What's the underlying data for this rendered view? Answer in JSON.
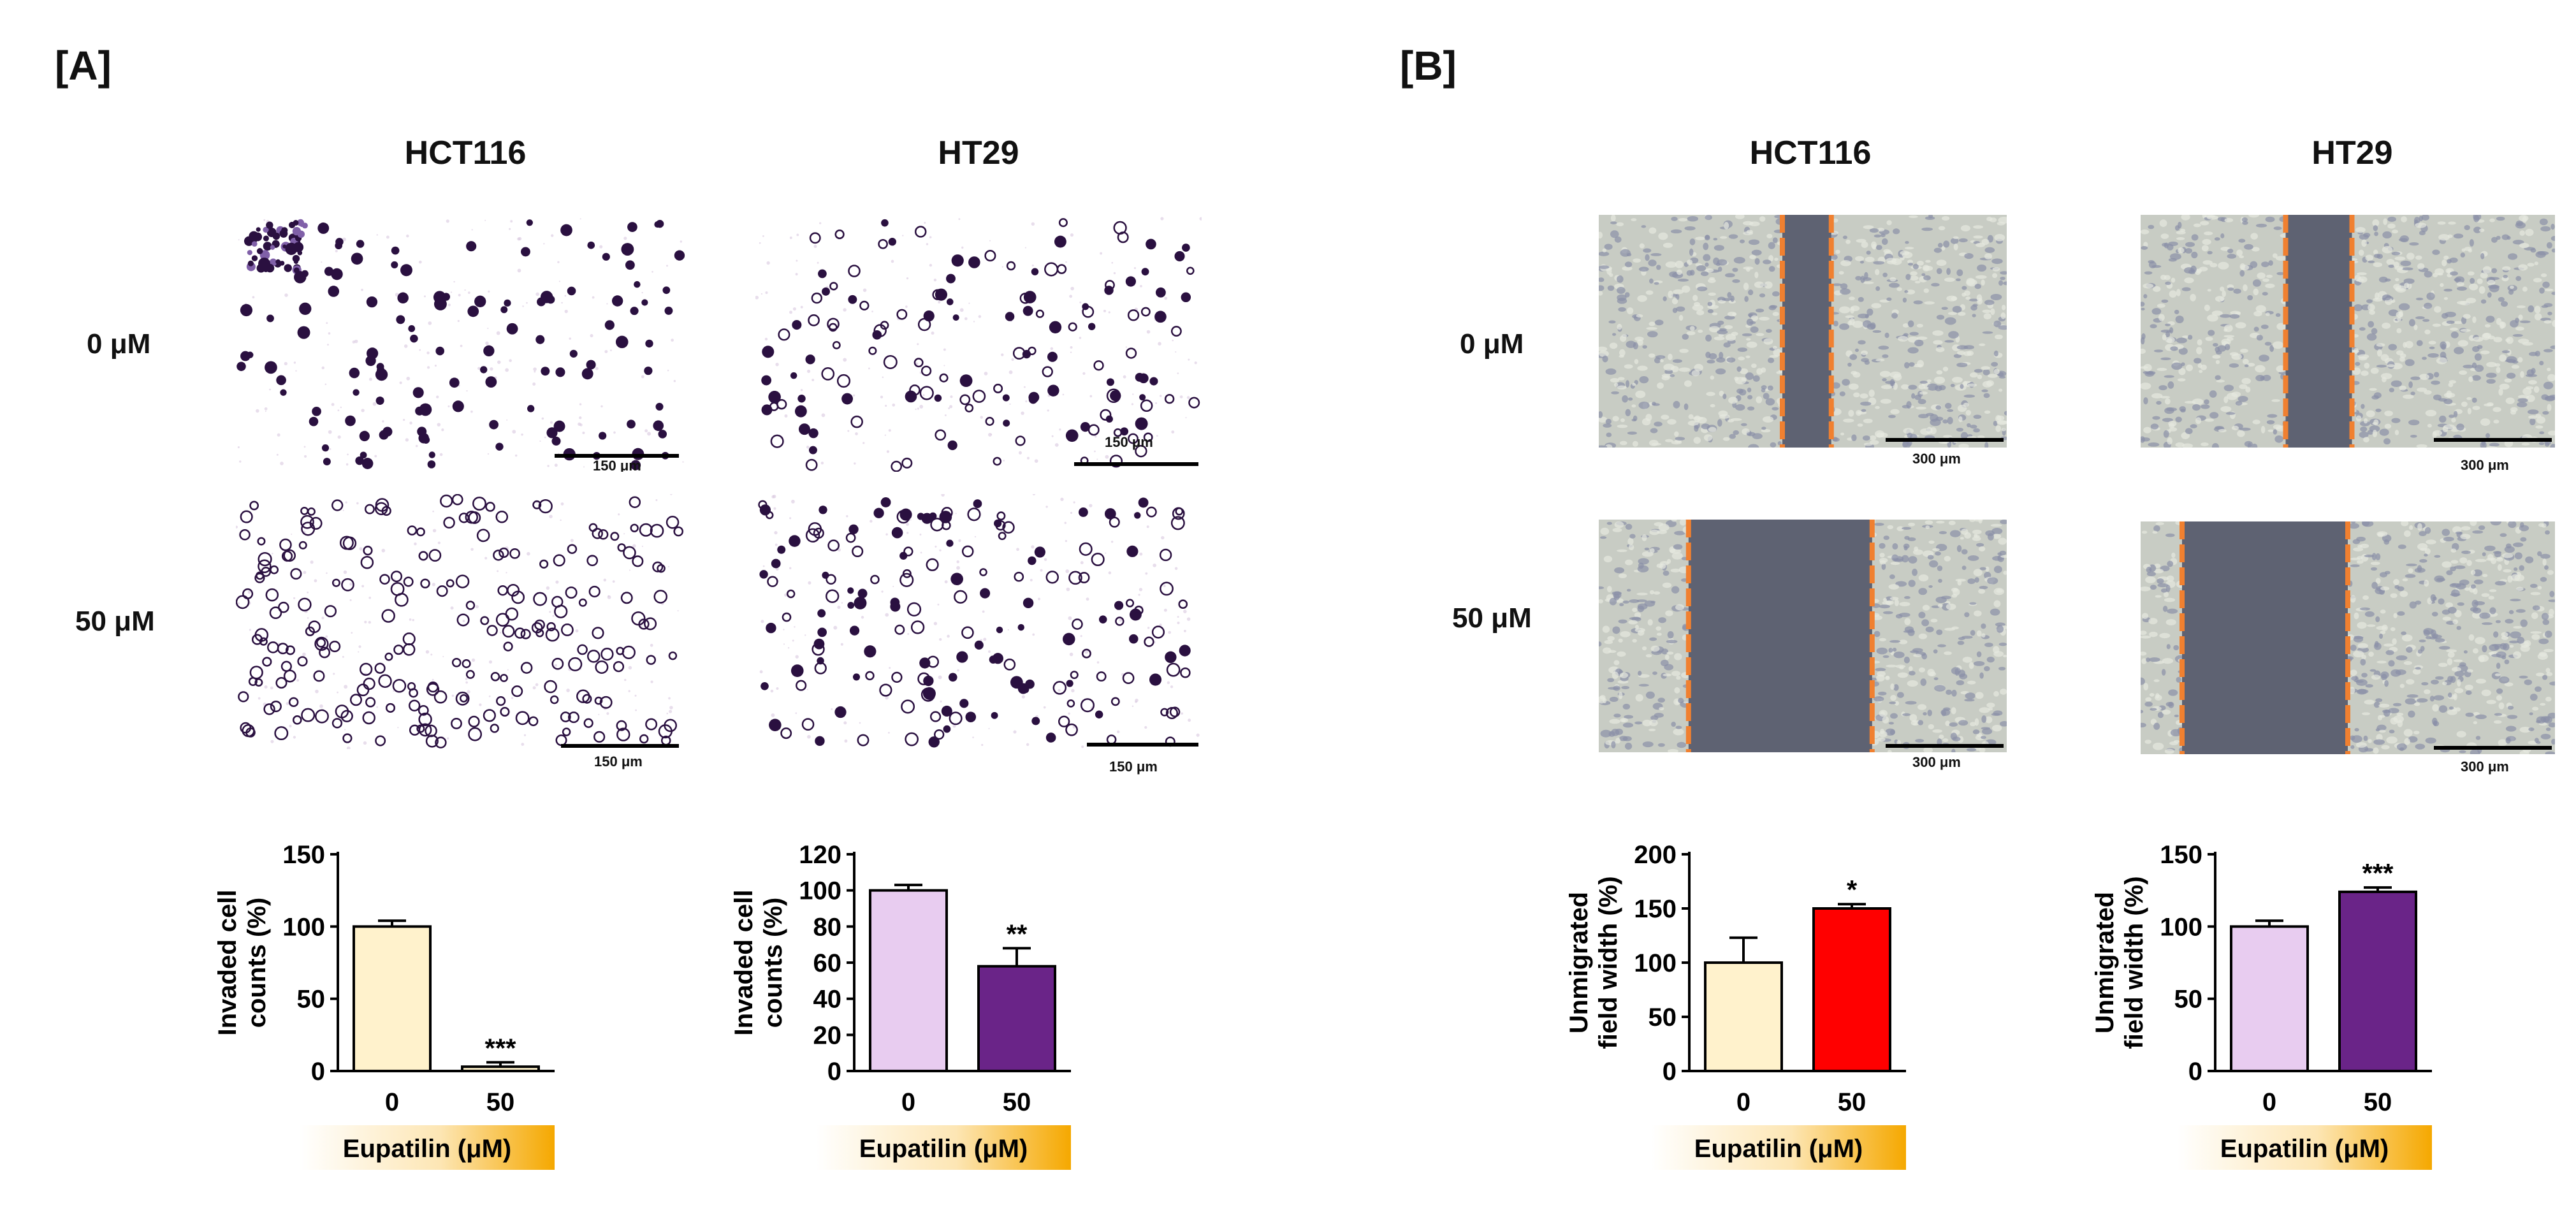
{
  "panels": {
    "A": {
      "label": "[A]",
      "columns": [
        "HCT116",
        "HT29"
      ],
      "rows": [
        "0 μM",
        "50 μM"
      ],
      "scale_label": "150 μm"
    },
    "B": {
      "label": "[B]",
      "columns": [
        "HCT116",
        "HT29"
      ],
      "rows": [
        "0 μM",
        "50 μM"
      ],
      "scale_label": "300 μm"
    }
  },
  "colors": {
    "hct116_control": "#fff2cc",
    "hct116_50_A": "#fff2cc",
    "ht29_control": "#e8ccf0",
    "ht29_50": "#6a2488",
    "hct116_50_B": "#ff0000",
    "xlabel_gradient_start": "#ffffff",
    "xlabel_gradient_end": "#f5a800",
    "wound_gap": "#5e6272",
    "wound_edge": "#f08030",
    "cell_stain": "#2a1040",
    "monolayer": "#c8ccc4"
  },
  "chart_data": [
    {
      "type": "bar",
      "panel": "A",
      "cell_line": "HCT116",
      "categories": [
        "0",
        "50"
      ],
      "values": [
        100,
        3
      ],
      "errors": [
        4,
        3
      ],
      "annotations": [
        "",
        "***"
      ],
      "ylabel": "Invaded cell counts (%)",
      "xlabel": "Eupatilin (μM)",
      "ylim": [
        0,
        150
      ],
      "yticks": [
        "0",
        "50",
        "100",
        "150"
      ]
    },
    {
      "type": "bar",
      "panel": "A",
      "cell_line": "HT29",
      "categories": [
        "0",
        "50"
      ],
      "values": [
        100,
        58
      ],
      "errors": [
        3,
        10
      ],
      "annotations": [
        "",
        "**"
      ],
      "ylabel": "Invaded cell counts (%)",
      "xlabel": "Eupatilin (μM)",
      "ylim": [
        0,
        120
      ],
      "yticks": [
        "0",
        "20",
        "40",
        "60",
        "80",
        "100",
        "120"
      ]
    },
    {
      "type": "bar",
      "panel": "B",
      "cell_line": "HCT116",
      "categories": [
        "0",
        "50"
      ],
      "values": [
        100,
        150
      ],
      "errors": [
        23,
        4
      ],
      "annotations": [
        "",
        "*"
      ],
      "ylabel": "Unmigrated field width (%)",
      "xlabel": "Eupatilin (μM)",
      "ylim": [
        0,
        200
      ],
      "yticks": [
        "0",
        "50",
        "100",
        "150",
        "200"
      ]
    },
    {
      "type": "bar",
      "panel": "B",
      "cell_line": "HT29",
      "categories": [
        "0",
        "50"
      ],
      "values": [
        100,
        124
      ],
      "errors": [
        4,
        3
      ],
      "annotations": [
        "",
        "***"
      ],
      "ylabel": "Unmigrated field width (%)",
      "xlabel": "Eupatilin (μM)",
      "ylim": [
        0,
        150
      ],
      "yticks": [
        "0",
        "50",
        "100",
        "150"
      ]
    }
  ]
}
